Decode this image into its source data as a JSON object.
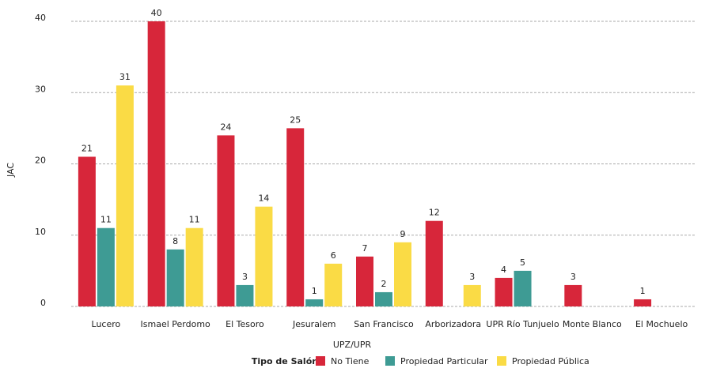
{
  "chart_data": {
    "type": "bar",
    "ylabel": "JAC",
    "xlabel": "UPZ/UPR",
    "legend_title": "Tipo de Salón",
    "categories": [
      "Lucero",
      "Ismael Perdomo",
      "El Tesoro",
      "Jesuralem",
      "San Francisco",
      "Arborizadora",
      "UPR Río Tunjuelo",
      "Monte Blanco",
      "El Mochuelo"
    ],
    "series": [
      {
        "name": "No Tiene",
        "color": "#d7263a",
        "values": [
          21,
          40,
          24,
          25,
          7,
          12,
          4,
          3,
          1
        ]
      },
      {
        "name": "Propiedad Particular",
        "color": "#3e9b94",
        "values": [
          11,
          8,
          3,
          1,
          2,
          null,
          5,
          null,
          null
        ]
      },
      {
        "name": "Propiedad Pública",
        "color": "#fadb45",
        "values": [
          31,
          11,
          14,
          6,
          9,
          3,
          null,
          null,
          null
        ]
      }
    ],
    "ylim": [
      0,
      40
    ],
    "yticks": [
      0,
      10,
      20,
      30,
      40
    ],
    "grid": true,
    "legend": "bottom"
  }
}
